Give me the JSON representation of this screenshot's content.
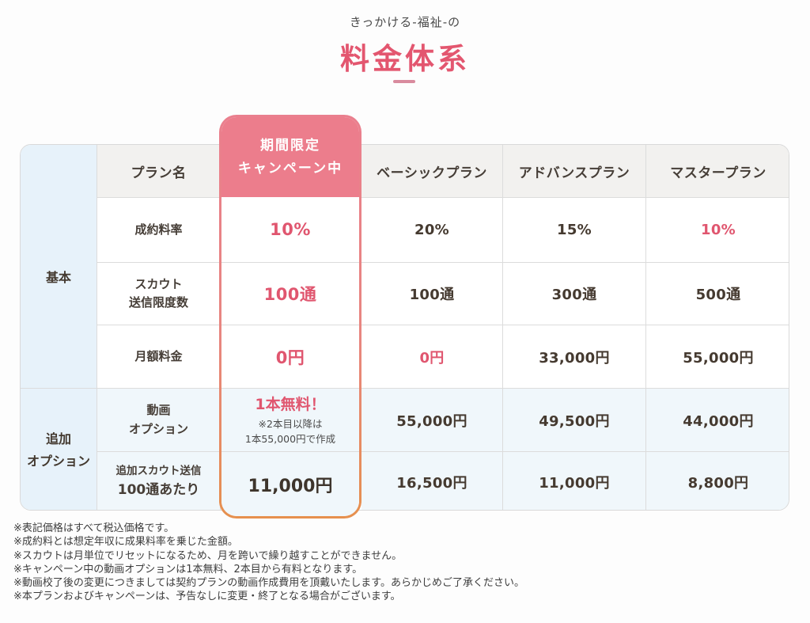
{
  "colors": {
    "accent_pink": "#E0566F",
    "title_pink": "#E3566F",
    "campaign_header_bg": "#EC7D8C",
    "campaign_border_top": "#EA7F8E",
    "campaign_border_bottom": "#E6904E",
    "dark_text": "#453A30",
    "group_column_bg": "#E7F2FA",
    "header_row_bg": "#F2F1EF",
    "option_rows_bg": "#F0F7FB"
  },
  "header": {
    "subtitle": "きっかける-福祉-の",
    "title": "料金体系"
  },
  "table": {
    "plan_name_header": "プラン名",
    "campaign_header": {
      "line1": "期間限定",
      "line2": "キャンペーン中"
    },
    "plan_headers": [
      "ベーシックプラン",
      "アドバンスプラン",
      "マスタープラン"
    ],
    "groups": {
      "basic": "基本",
      "option_line1": "追加",
      "option_line2": "オプション"
    },
    "rows": [
      {
        "label_lines": [
          "成約料率"
        ],
        "campaign": "10%",
        "values": [
          "20%",
          "15%",
          "10%"
        ],
        "value_highlights": [
          false,
          false,
          true
        ]
      },
      {
        "label_lines": [
          "スカウト",
          "送信限度数"
        ],
        "campaign": "100通",
        "values": [
          "100通",
          "300通",
          "500通"
        ],
        "value_highlights": [
          false,
          false,
          false
        ]
      },
      {
        "label_lines": [
          "月額料金"
        ],
        "campaign": "0円",
        "values": [
          "0円",
          "33,000円",
          "55,000円"
        ],
        "value_highlights": [
          true,
          false,
          false
        ]
      },
      {
        "label_lines": [
          "動画",
          "オプション"
        ],
        "campaign": "1本無料！",
        "campaign_note_lines": [
          "※2本目以降は",
          "1本55,000円で作成"
        ],
        "values": [
          "55,000円",
          "49,500円",
          "44,000円"
        ],
        "value_highlights": [
          false,
          false,
          false
        ]
      },
      {
        "label_lines": [
          "追加スカウト送信",
          "100通あたり"
        ],
        "campaign": "11,000円",
        "values": [
          "16,500円",
          "11,000円",
          "8,800円"
        ],
        "value_highlights": [
          false,
          false,
          false
        ]
      }
    ]
  },
  "footnotes": [
    "※表記価格はすべて税込価格です。",
    "※成約料とは想定年収に成果料率を乗じた金額。",
    "※スカウトは月単位でリセットになるため、月を跨いで繰り越すことができません。",
    "※キャンペーン中の動画オプションは1本無料、2本目から有料となります。",
    "※動画校了後の変更につきましては契約プランの動画作成費用を頂戴いたします。あらかじめご了承ください。",
    "※本プランおよびキャンペーンは、予告なしに変更・終了となる場合がございます。"
  ]
}
